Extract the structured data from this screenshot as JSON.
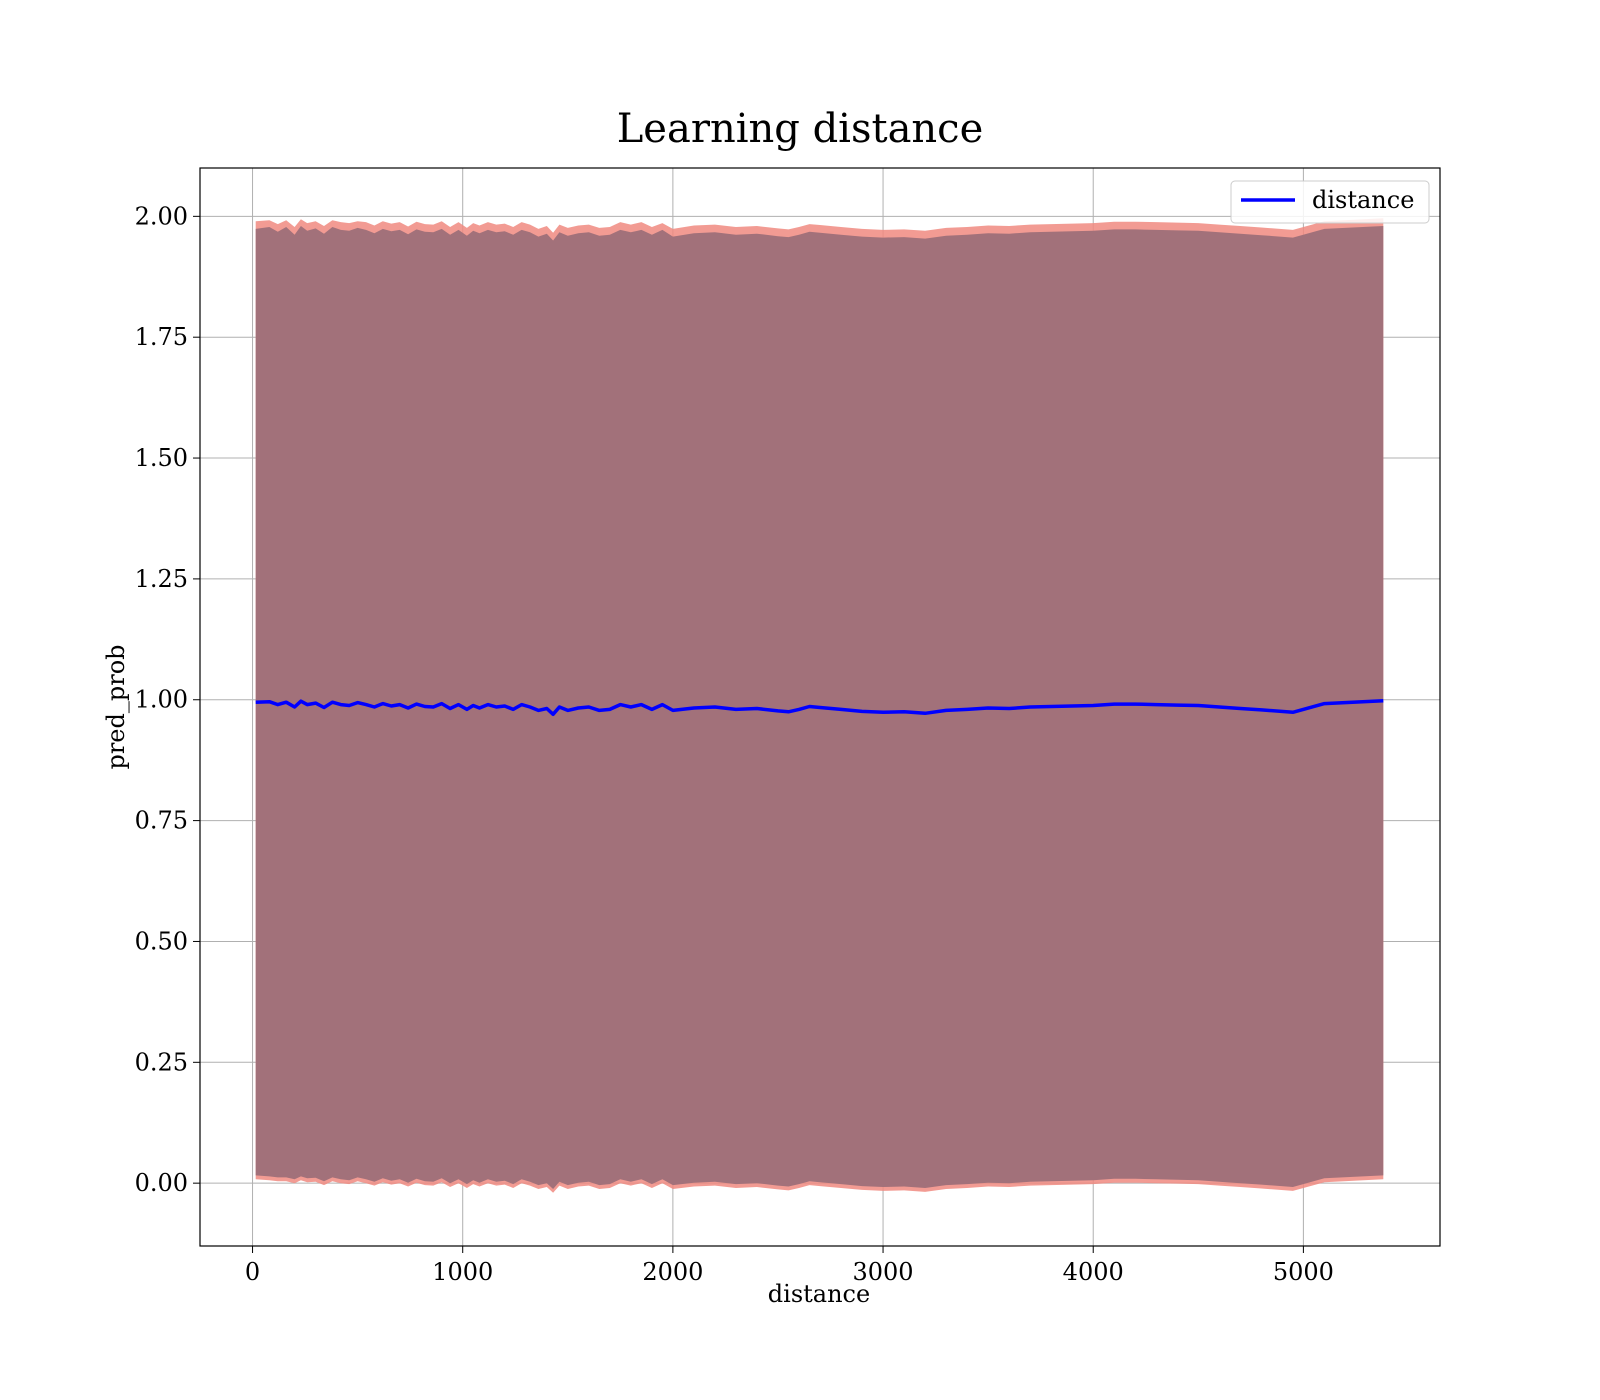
{
  "chart_data": {
    "type": "line",
    "title": "Learning distance",
    "xlabel": "distance",
    "ylabel": "pred_prob",
    "xlim": [
      -250,
      5650
    ],
    "ylim": [
      -0.13,
      2.1
    ],
    "grid": true,
    "legend_position": "upper-right",
    "xticks": [
      0,
      1000,
      2000,
      3000,
      4000,
      5000
    ],
    "xtick_labels": [
      "0",
      "1000",
      "2000",
      "3000",
      "4000",
      "5000"
    ],
    "yticks": [
      0.0,
      0.25,
      0.5,
      0.75,
      1.0,
      1.25,
      1.5,
      1.75,
      2.0
    ],
    "ytick_labels": [
      "0.00",
      "0.25",
      "0.50",
      "0.75",
      "1.00",
      "1.25",
      "1.50",
      "1.75",
      "2.00"
    ],
    "colors": {
      "line": "#0000ff",
      "band_fill": "#a2717a",
      "band_edge": "#f08a80",
      "grid": "#b0b0b0",
      "axes": "#000000"
    },
    "series": [
      {
        "name": "distance",
        "x": [
          15,
          80,
          120,
          160,
          200,
          230,
          260,
          300,
          340,
          380,
          420,
          460,
          500,
          540,
          580,
          620,
          660,
          700,
          740,
          780,
          820,
          860,
          900,
          940,
          980,
          1020,
          1050,
          1080,
          1120,
          1160,
          1200,
          1240,
          1280,
          1320,
          1360,
          1400,
          1430,
          1460,
          1500,
          1550,
          1600,
          1650,
          1700,
          1750,
          1800,
          1850,
          1900,
          1950,
          2000,
          2100,
          2200,
          2300,
          2400,
          2500,
          2550,
          2600,
          2650,
          2700,
          2800,
          2900,
          3000,
          3100,
          3200,
          3300,
          3400,
          3500,
          3600,
          3700,
          3800,
          3900,
          4000,
          4100,
          4200,
          4300,
          4400,
          4500,
          4600,
          4700,
          4800,
          4950,
          5100,
          5380
        ],
        "values": [
          0.995,
          0.996,
          0.99,
          0.995,
          0.985,
          0.997,
          0.99,
          0.993,
          0.984,
          0.995,
          0.99,
          0.988,
          0.994,
          0.99,
          0.985,
          0.992,
          0.987,
          0.99,
          0.983,
          0.991,
          0.986,
          0.985,
          0.992,
          0.982,
          0.99,
          0.98,
          0.988,
          0.983,
          0.99,
          0.985,
          0.987,
          0.98,
          0.99,
          0.985,
          0.978,
          0.982,
          0.97,
          0.985,
          0.978,
          0.983,
          0.985,
          0.978,
          0.98,
          0.99,
          0.985,
          0.99,
          0.98,
          0.99,
          0.978,
          0.983,
          0.985,
          0.98,
          0.982,
          0.977,
          0.975,
          0.98,
          0.986,
          0.984,
          0.98,
          0.976,
          0.974,
          0.975,
          0.972,
          0.978,
          0.98,
          0.983,
          0.982,
          0.985,
          0.986,
          0.987,
          0.988,
          0.991,
          0.991,
          0.99,
          0.989,
          0.988,
          0.985,
          0.982,
          0.979,
          0.974,
          0.992,
          0.998
        ]
      }
    ],
    "band": {
      "lower_outer": [
        0.008,
        0.006,
        0.004,
        0.004,
        0.0,
        0.006,
        0.002,
        0.003,
        -0.004,
        0.004,
        0.0,
        -0.002,
        0.004,
        0.0,
        -0.005,
        0.002,
        -0.003,
        0.0,
        -0.007,
        0.001,
        -0.004,
        -0.005,
        0.002,
        -0.008,
        0.0,
        -0.01,
        -0.002,
        -0.007,
        0.0,
        -0.005,
        -0.003,
        -0.01,
        0.0,
        -0.005,
        -0.012,
        -0.008,
        -0.02,
        -0.005,
        -0.012,
        -0.007,
        -0.005,
        -0.012,
        -0.01,
        0.0,
        -0.005,
        0.0,
        -0.01,
        0.0,
        -0.012,
        -0.007,
        -0.005,
        -0.01,
        -0.008,
        -0.013,
        -0.015,
        -0.01,
        -0.004,
        -0.006,
        -0.01,
        -0.014,
        -0.016,
        -0.015,
        -0.018,
        -0.012,
        -0.01,
        -0.007,
        -0.008,
        -0.005,
        -0.004,
        -0.003,
        -0.002,
        0.001,
        0.001,
        0.0,
        -0.001,
        -0.002,
        -0.005,
        -0.008,
        -0.011,
        -0.016,
        0.002,
        0.008
      ],
      "lower_inner": [
        0.016,
        0.014,
        0.012,
        0.012,
        0.008,
        0.014,
        0.01,
        0.011,
        0.004,
        0.012,
        0.008,
        0.006,
        0.012,
        0.008,
        0.003,
        0.01,
        0.005,
        0.008,
        0.001,
        0.009,
        0.004,
        0.003,
        0.01,
        0.0,
        0.008,
        -0.002,
        0.006,
        0.001,
        0.008,
        0.003,
        0.005,
        -0.002,
        0.008,
        0.003,
        -0.004,
        0.0,
        -0.012,
        0.003,
        -0.004,
        0.001,
        0.003,
        -0.004,
        -0.002,
        0.008,
        0.003,
        0.008,
        -0.002,
        0.008,
        -0.004,
        0.001,
        0.003,
        -0.002,
        0.0,
        -0.005,
        -0.007,
        -0.002,
        0.004,
        0.002,
        -0.002,
        -0.006,
        -0.008,
        -0.007,
        -0.01,
        -0.004,
        -0.002,
        0.001,
        0.0,
        0.003,
        0.004,
        0.005,
        0.006,
        0.009,
        0.009,
        0.008,
        0.007,
        0.006,
        0.003,
        0.0,
        -0.003,
        -0.008,
        0.01,
        0.016
      ],
      "upper_inner": [
        1.974,
        1.978,
        1.968,
        1.978,
        1.962,
        1.98,
        1.97,
        1.975,
        1.964,
        1.978,
        1.972,
        1.97,
        1.976,
        1.972,
        1.965,
        1.974,
        1.969,
        1.972,
        1.963,
        1.973,
        1.968,
        1.967,
        1.974,
        1.962,
        1.972,
        1.96,
        1.97,
        1.965,
        1.972,
        1.967,
        1.969,
        1.962,
        1.972,
        1.967,
        1.958,
        1.964,
        1.95,
        1.967,
        1.96,
        1.965,
        1.967,
        1.96,
        1.962,
        1.972,
        1.967,
        1.972,
        1.962,
        1.972,
        1.958,
        1.965,
        1.967,
        1.962,
        1.964,
        1.959,
        1.957,
        1.962,
        1.968,
        1.966,
        1.962,
        1.958,
        1.956,
        1.957,
        1.954,
        1.96,
        1.962,
        1.965,
        1.964,
        1.967,
        1.968,
        1.969,
        1.97,
        1.973,
        1.973,
        1.972,
        1.971,
        1.97,
        1.967,
        1.964,
        1.961,
        1.956,
        1.974,
        1.98
      ],
      "upper_outer": [
        1.99,
        1.992,
        1.984,
        1.992,
        1.978,
        1.994,
        1.986,
        1.99,
        1.98,
        1.992,
        1.988,
        1.986,
        1.99,
        1.988,
        1.981,
        1.99,
        1.985,
        1.988,
        1.979,
        1.989,
        1.984,
        1.983,
        1.99,
        1.978,
        1.988,
        1.976,
        1.986,
        1.981,
        1.988,
        1.983,
        1.985,
        1.978,
        1.988,
        1.983,
        1.974,
        1.98,
        1.966,
        1.983,
        1.976,
        1.981,
        1.983,
        1.976,
        1.978,
        1.988,
        1.983,
        1.988,
        1.978,
        1.986,
        1.974,
        1.981,
        1.983,
        1.978,
        1.98,
        1.975,
        1.973,
        1.978,
        1.984,
        1.982,
        1.978,
        1.974,
        1.972,
        1.973,
        1.97,
        1.976,
        1.978,
        1.981,
        1.98,
        1.983,
        1.984,
        1.985,
        1.986,
        1.989,
        1.989,
        1.988,
        1.987,
        1.986,
        1.983,
        1.98,
        1.977,
        1.972,
        1.99,
        1.996
      ]
    }
  }
}
